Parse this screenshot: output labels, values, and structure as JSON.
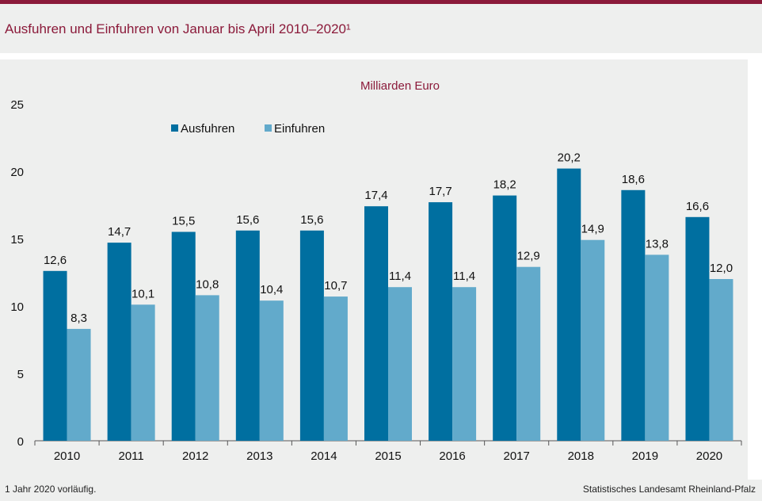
{
  "title": "Ausfuhren und Einfuhren von Januar bis April 2010–2020¹",
  "footnote": "1 Jahr  2020 vorläufig.",
  "source": "Statistisches Landesamt Rheinland-Pfalz",
  "colors": {
    "accent": "#8b1a3a",
    "ausfuhren": "#006fa0",
    "einfuhren": "#62aacb"
  },
  "chart_data": {
    "type": "bar",
    "unit_label": "Milliarden Euro",
    "categories": [
      "2010",
      "2011",
      "2012",
      "2013",
      "2014",
      "2015",
      "2016",
      "2017",
      "2018",
      "2019",
      "2020"
    ],
    "series": [
      {
        "name": "Ausfuhren",
        "values": [
          12.6,
          14.7,
          15.5,
          15.6,
          15.6,
          17.4,
          17.7,
          18.2,
          20.2,
          18.6,
          16.6
        ],
        "labels": [
          "12,6",
          "14,7",
          "15,5",
          "15,6",
          "15,6",
          "17,4",
          "17,7",
          "18,2",
          "20,2",
          "18,6",
          "16,6"
        ]
      },
      {
        "name": "Einfuhren",
        "values": [
          8.3,
          10.1,
          10.8,
          10.4,
          10.7,
          11.4,
          11.4,
          12.9,
          14.9,
          13.8,
          12.0
        ],
        "labels": [
          "8,3",
          "10,1",
          "10,8",
          "10,4",
          "10,7",
          "11,4",
          "11,4",
          "12,9",
          "14,9",
          "13,8",
          "12,0"
        ]
      }
    ],
    "yticks": [
      0,
      5,
      10,
      15,
      20,
      25
    ],
    "ylim": [
      0,
      25
    ],
    "legend": "top-left",
    "grid": false
  }
}
